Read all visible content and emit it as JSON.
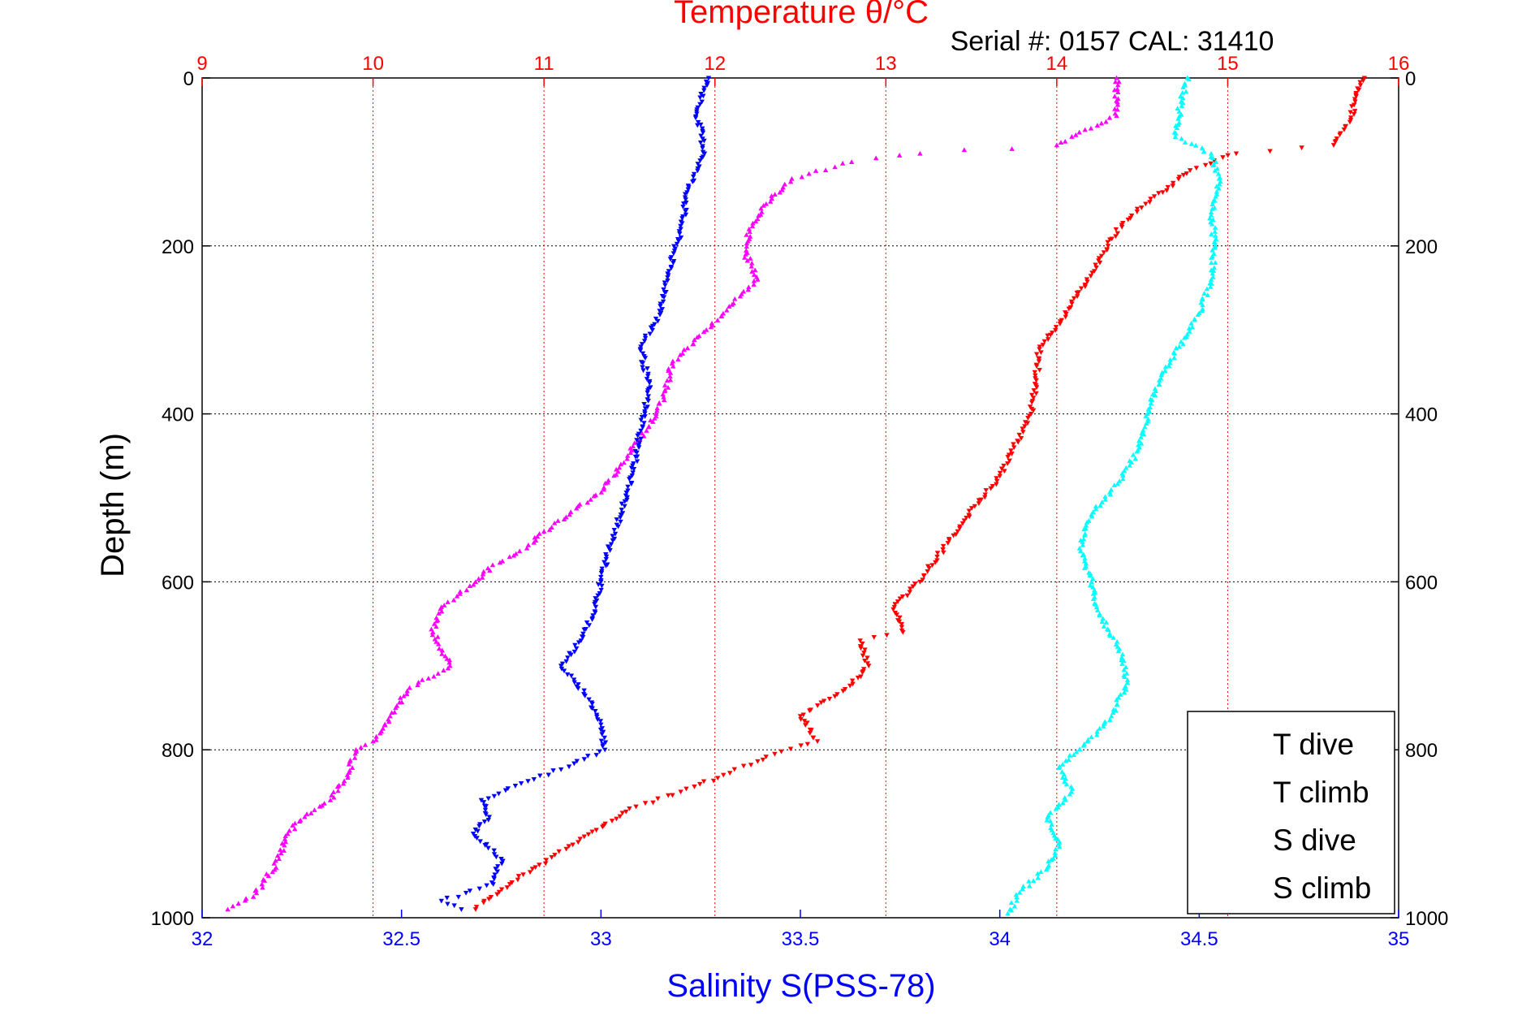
{
  "chart_data": {
    "type": "scatter",
    "title": "Temperature θ/°C",
    "subtitle": "Serial #: 0157  CAL: 31410",
    "ylabel": "Depth (m)",
    "xlabel": "Salinity S(PSS-78)",
    "y_axis": {
      "range": [
        0,
        1000
      ],
      "inverted": true,
      "ticks": [
        "0",
        "200",
        "400",
        "600",
        "800",
        "1000"
      ]
    },
    "x_top_axis": {
      "label": "Temperature θ/°C",
      "range": [
        9,
        16
      ],
      "ticks": [
        "9",
        "10",
        "11",
        "12",
        "13",
        "14",
        "15",
        "16"
      ],
      "grid_style": "dotted",
      "color": "#ff0000"
    },
    "x_bottom_axis": {
      "label": "Salinity S(PSS-78)",
      "range": [
        32,
        35
      ],
      "ticks": [
        "32",
        "32.5",
        "33",
        "33.5",
        "34",
        "34.5",
        "35"
      ],
      "color": "#0000ff"
    },
    "grid": true,
    "legend": {
      "position": "bottom-right",
      "entries": [
        "T dive",
        "T climb",
        "S dive",
        "S climb"
      ]
    },
    "colors": {
      "title": "#ff0000",
      "temp_axis": "#ff0000",
      "sal_axis": "#0000ff",
      "depth_axis": "#000000"
    },
    "series": [
      {
        "name": "T dive",
        "axis": "temperature",
        "color": "#ff0000",
        "marker": "triangle-down",
        "points": [
          [
            15.8,
            0
          ],
          [
            15.75,
            20
          ],
          [
            15.72,
            50
          ],
          [
            15.62,
            80
          ],
          [
            15.05,
            90
          ],
          [
            14.78,
            110
          ],
          [
            14.65,
            130
          ],
          [
            14.52,
            150
          ],
          [
            14.38,
            175
          ],
          [
            14.3,
            200
          ],
          [
            14.22,
            230
          ],
          [
            14.12,
            260
          ],
          [
            14.02,
            290
          ],
          [
            13.9,
            320
          ],
          [
            13.88,
            360
          ],
          [
            13.85,
            400
          ],
          [
            13.75,
            440
          ],
          [
            13.65,
            480
          ],
          [
            13.52,
            510
          ],
          [
            13.42,
            540
          ],
          [
            13.3,
            570
          ],
          [
            13.2,
            600
          ],
          [
            13.05,
            630
          ],
          [
            13.1,
            660
          ],
          [
            12.85,
            670
          ],
          [
            12.9,
            700
          ],
          [
            12.75,
            730
          ],
          [
            12.5,
            760
          ],
          [
            12.6,
            790
          ],
          [
            12.35,
            805
          ],
          [
            12.05,
            830
          ],
          [
            11.8,
            850
          ],
          [
            11.5,
            870
          ],
          [
            11.35,
            890
          ],
          [
            11.2,
            910
          ],
          [
            10.95,
            940
          ],
          [
            10.8,
            960
          ],
          [
            10.65,
            980
          ],
          [
            10.6,
            990
          ]
        ]
      },
      {
        "name": "T climb",
        "axis": "temperature",
        "color": "#ff00ff",
        "marker": "triangle-up",
        "points": [
          [
            14.35,
            0
          ],
          [
            14.35,
            45
          ],
          [
            14.2,
            60
          ],
          [
            14.0,
            80
          ],
          [
            13.2,
            90
          ],
          [
            12.8,
            100
          ],
          [
            12.45,
            120
          ],
          [
            12.3,
            150
          ],
          [
            12.2,
            180
          ],
          [
            12.18,
            210
          ],
          [
            12.25,
            240
          ],
          [
            12.1,
            270
          ],
          [
            11.95,
            300
          ],
          [
            11.75,
            340
          ],
          [
            11.7,
            380
          ],
          [
            11.6,
            420
          ],
          [
            11.45,
            460
          ],
          [
            11.35,
            490
          ],
          [
            11.2,
            510
          ],
          [
            11.15,
            520
          ],
          [
            11.0,
            540
          ],
          [
            10.9,
            560
          ],
          [
            10.7,
            580
          ],
          [
            10.6,
            600
          ],
          [
            10.4,
            630
          ],
          [
            10.35,
            660
          ],
          [
            10.45,
            700
          ],
          [
            10.2,
            730
          ],
          [
            10.1,
            760
          ],
          [
            10.0,
            790
          ],
          [
            9.9,
            800
          ],
          [
            9.85,
            830
          ],
          [
            9.75,
            860
          ],
          [
            9.6,
            880
          ],
          [
            9.5,
            900
          ],
          [
            9.45,
            930
          ],
          [
            9.35,
            960
          ],
          [
            9.3,
            975
          ],
          [
            9.15,
            990
          ]
        ]
      },
      {
        "name": "S dive",
        "axis": "salinity",
        "color": "#0000ff",
        "marker": "triangle-down",
        "points": [
          [
            33.27,
            0
          ],
          [
            33.24,
            40
          ],
          [
            33.26,
            90
          ],
          [
            33.22,
            130
          ],
          [
            33.2,
            180
          ],
          [
            33.17,
            230
          ],
          [
            33.15,
            280
          ],
          [
            33.1,
            320
          ],
          [
            33.12,
            370
          ],
          [
            33.1,
            420
          ],
          [
            33.08,
            470
          ],
          [
            33.05,
            520
          ],
          [
            33.02,
            560
          ],
          [
            33.0,
            600
          ],
          [
            32.98,
            640
          ],
          [
            32.95,
            670
          ],
          [
            32.9,
            700
          ],
          [
            32.97,
            740
          ],
          [
            33.0,
            770
          ],
          [
            33.01,
            800
          ],
          [
            32.92,
            820
          ],
          [
            32.8,
            840
          ],
          [
            32.7,
            860
          ],
          [
            32.72,
            880
          ],
          [
            32.68,
            900
          ],
          [
            32.75,
            930
          ],
          [
            32.73,
            960
          ],
          [
            32.6,
            980
          ],
          [
            32.65,
            990
          ]
        ]
      },
      {
        "name": "S climb",
        "axis": "salinity",
        "color": "#00ffff",
        "marker": "triangle-up",
        "points": [
          [
            34.47,
            0
          ],
          [
            34.45,
            40
          ],
          [
            34.44,
            70
          ],
          [
            34.53,
            90
          ],
          [
            34.55,
            120
          ],
          [
            34.53,
            160
          ],
          [
            34.54,
            200
          ],
          [
            34.53,
            240
          ],
          [
            34.5,
            280
          ],
          [
            34.45,
            320
          ],
          [
            34.4,
            360
          ],
          [
            34.37,
            400
          ],
          [
            34.35,
            440
          ],
          [
            34.3,
            480
          ],
          [
            34.23,
            520
          ],
          [
            34.2,
            560
          ],
          [
            34.23,
            600
          ],
          [
            34.25,
            640
          ],
          [
            34.3,
            680
          ],
          [
            34.32,
            720
          ],
          [
            34.28,
            760
          ],
          [
            34.22,
            790
          ],
          [
            34.15,
            820
          ],
          [
            34.18,
            850
          ],
          [
            34.12,
            880
          ],
          [
            34.15,
            910
          ],
          [
            34.12,
            940
          ],
          [
            34.05,
            970
          ],
          [
            34.02,
            995
          ]
        ]
      }
    ]
  }
}
